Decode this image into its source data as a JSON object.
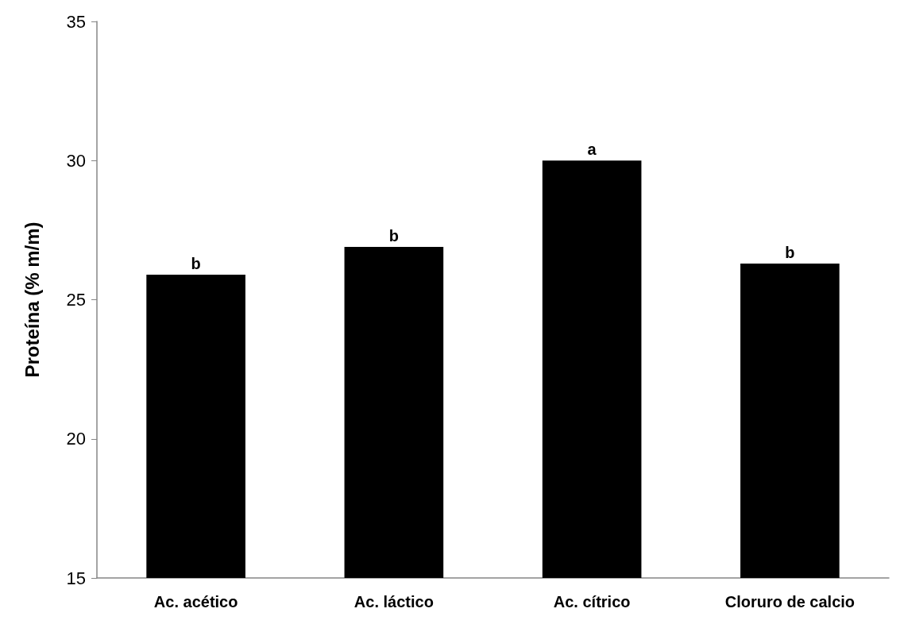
{
  "chart_data": {
    "type": "bar",
    "ylabel": "Proteína (% m/m)",
    "categories": [
      "Ac. acético",
      "Ac. láctico",
      "Ac. cítrico",
      "Cloruro de calcio"
    ],
    "values": [
      25.9,
      26.9,
      30.0,
      26.3
    ],
    "color": "#000000",
    "ylim": [
      15,
      35
    ],
    "yticks": [
      15,
      20,
      25,
      30,
      35
    ],
    "grid": false,
    "annotations": [
      {
        "text": "b",
        "x": "Ac. acético",
        "y": 25.9
      },
      {
        "text": "b",
        "x": "Ac. láctico",
        "y": 26.9
      },
      {
        "text": "a",
        "x": "Ac. cítrico",
        "y": 30.0
      },
      {
        "text": "b",
        "x": "Cloruro de calcio",
        "y": 26.3
      }
    ]
  }
}
